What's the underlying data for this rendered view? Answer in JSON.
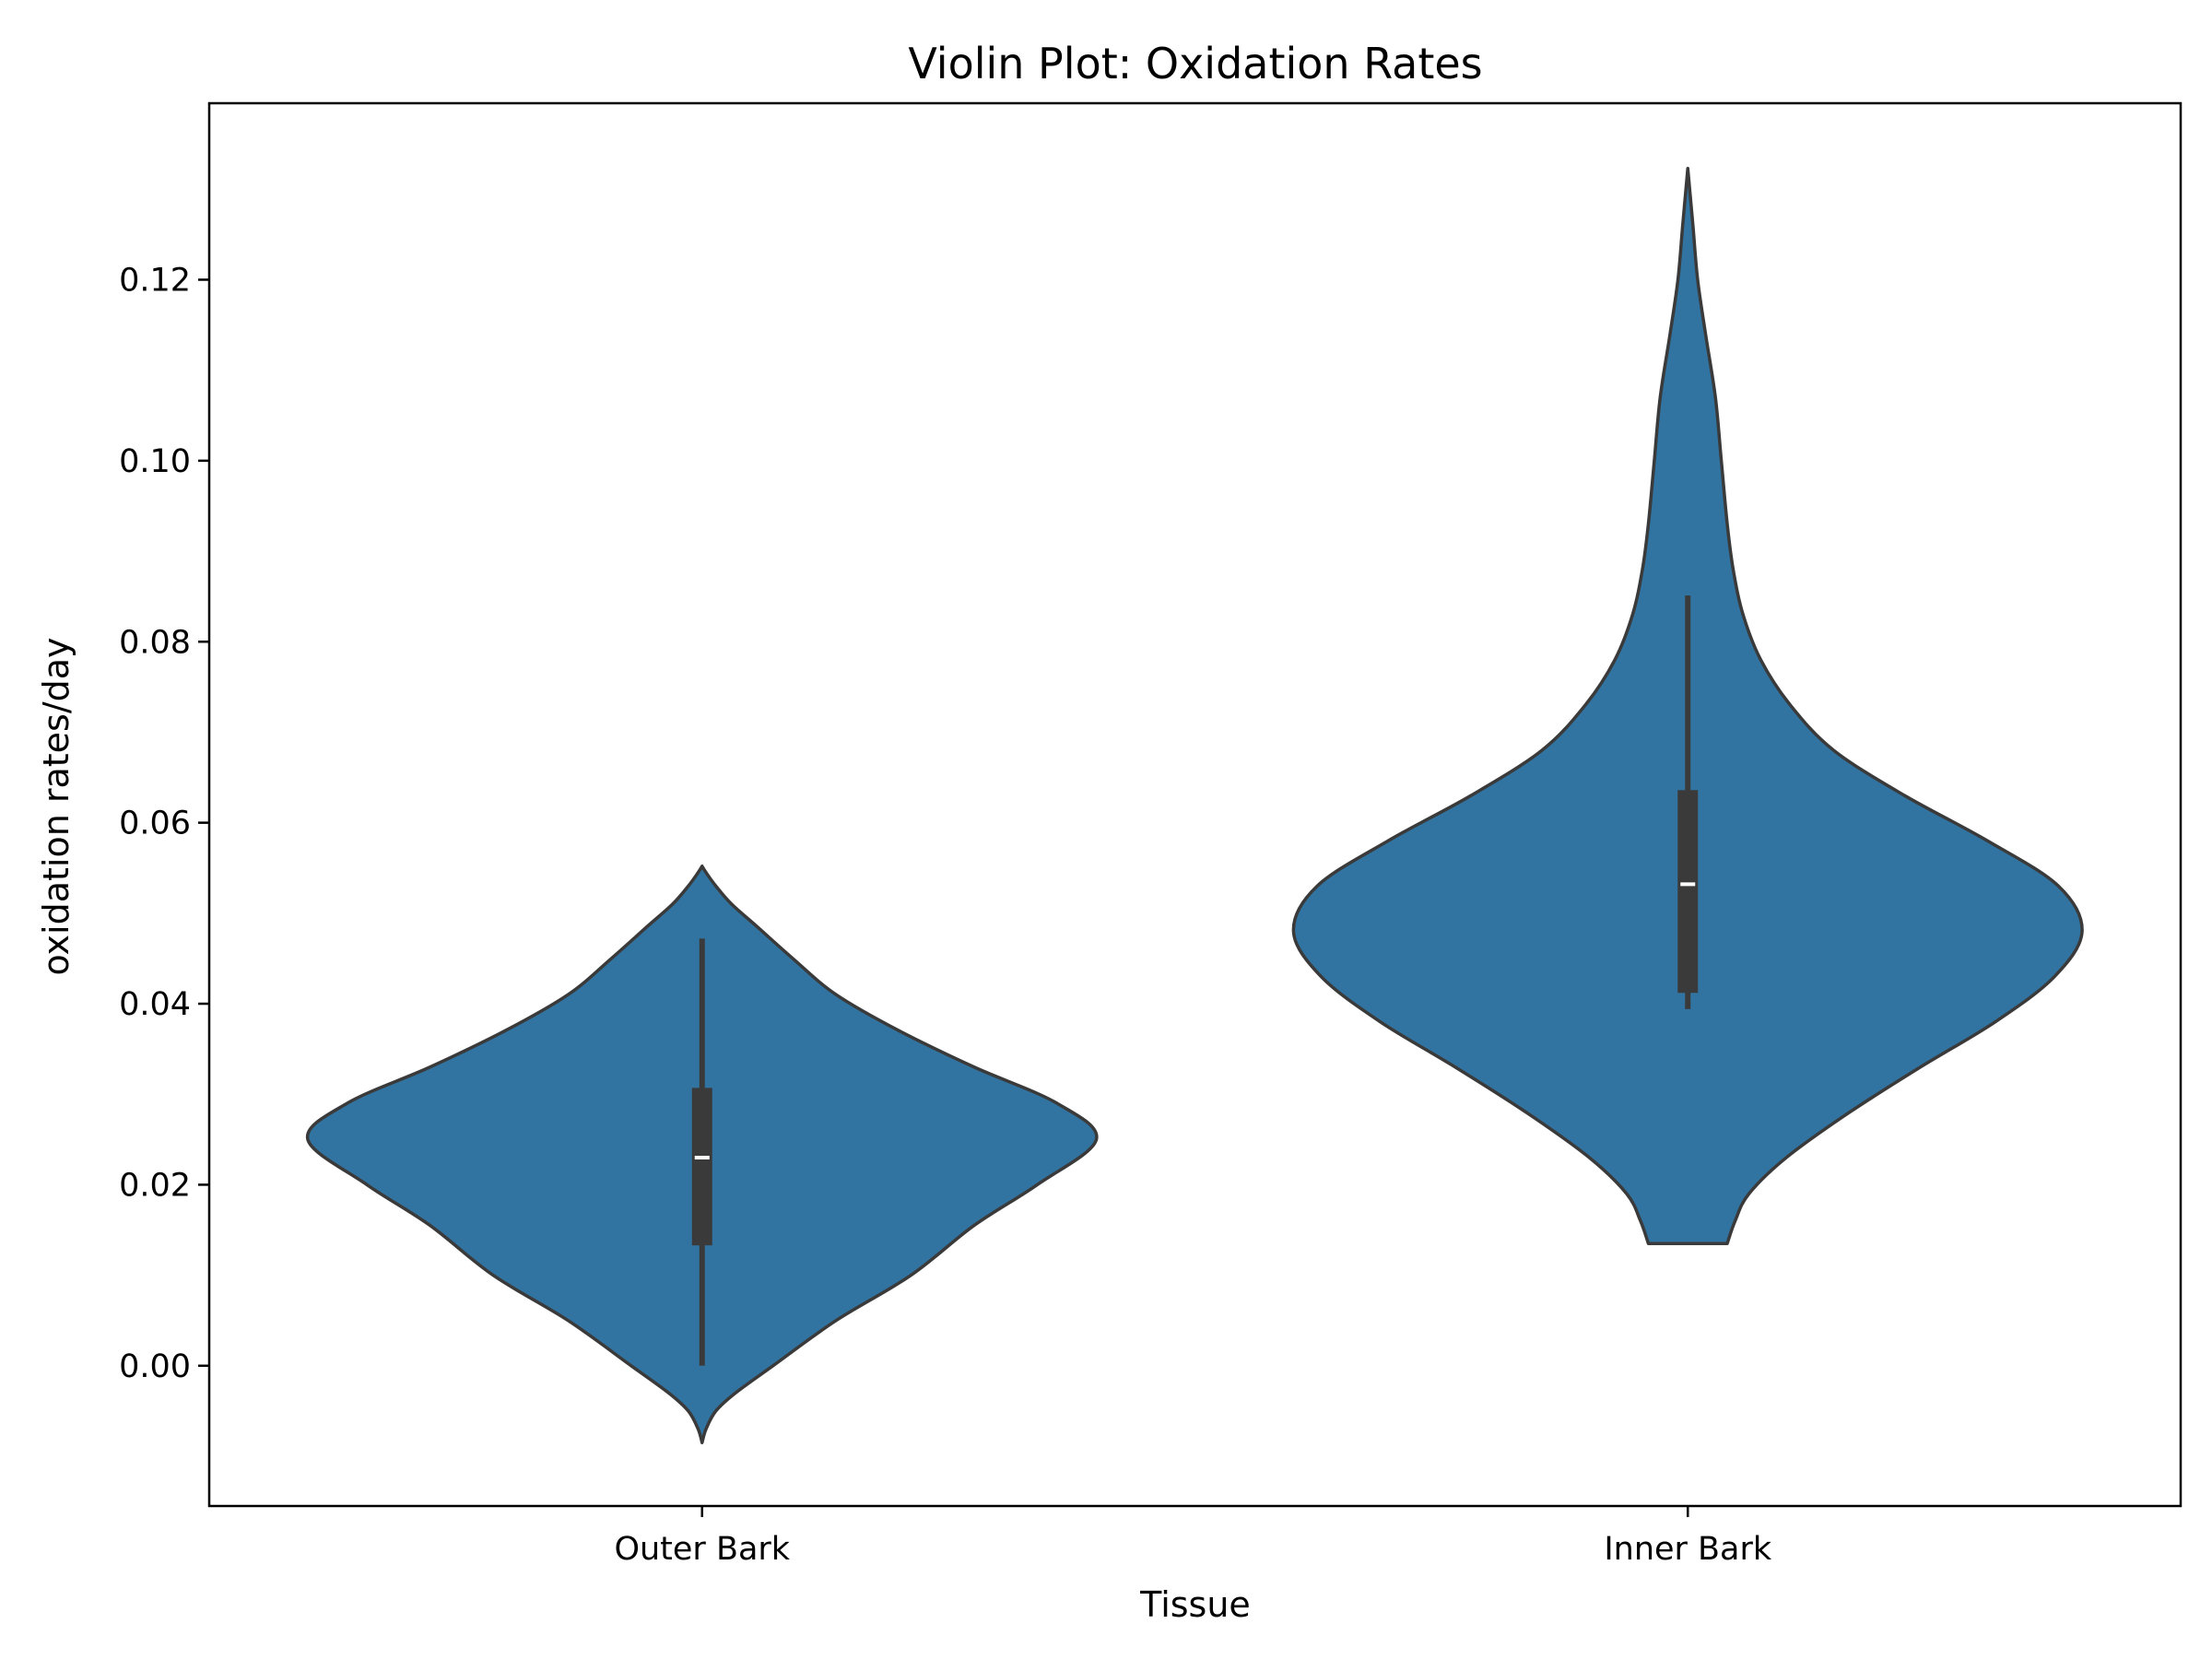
{
  "chart_data": {
    "type": "violin",
    "title": "Violin Plot: Oxidation Rates",
    "xlabel": "Tissue",
    "ylabel": "oxidation rates/day",
    "ylim": [
      -0.0155,
      0.1395
    ],
    "yticks": [
      "0.00",
      "0.02",
      "0.04",
      "0.06",
      "0.08",
      "0.10",
      "0.12"
    ],
    "grid": false,
    "categories": [
      "Outer Bark",
      "Inner Bark"
    ],
    "violins": [
      {
        "category": "Outer Bark",
        "min": -0.0085,
        "max": 0.0552,
        "whisker_low": 0.0,
        "whisker_high": 0.0472,
        "q1": 0.0133,
        "median": 0.023,
        "q3": 0.0307,
        "density_profile": [
          [
            -0.0085,
            0.0
          ],
          [
            -0.007,
            0.01
          ],
          [
            -0.005,
            0.035
          ],
          [
            -0.003,
            0.085
          ],
          [
            0.0,
            0.18
          ],
          [
            0.005,
            0.34
          ],
          [
            0.01,
            0.53
          ],
          [
            0.0155,
            0.69
          ],
          [
            0.02,
            0.85
          ],
          [
            0.025,
            1.0
          ],
          [
            0.029,
            0.9
          ],
          [
            0.033,
            0.69
          ],
          [
            0.037,
            0.5
          ],
          [
            0.041,
            0.34
          ],
          [
            0.045,
            0.23
          ],
          [
            0.0485,
            0.14
          ],
          [
            0.051,
            0.075
          ],
          [
            0.053,
            0.035
          ],
          [
            0.0545,
            0.01
          ],
          [
            0.0552,
            0.0
          ]
        ]
      },
      {
        "category": "Inner Bark",
        "min": 0.0135,
        "max": 0.1323,
        "whisker_low": 0.0394,
        "whisker_high": 0.0851,
        "q1": 0.0412,
        "median": 0.0532,
        "q3": 0.0636,
        "density_profile": [
          [
            0.0135,
            0.1
          ],
          [
            0.016,
            0.12
          ],
          [
            0.019,
            0.155
          ],
          [
            0.023,
            0.25
          ],
          [
            0.028,
            0.41
          ],
          [
            0.033,
            0.59
          ],
          [
            0.038,
            0.78
          ],
          [
            0.043,
            0.93
          ],
          [
            0.048,
            1.0
          ],
          [
            0.053,
            0.94
          ],
          [
            0.058,
            0.76
          ],
          [
            0.063,
            0.55
          ],
          [
            0.068,
            0.37
          ],
          [
            0.073,
            0.26
          ],
          [
            0.078,
            0.185
          ],
          [
            0.083,
            0.14
          ],
          [
            0.088,
            0.115
          ],
          [
            0.093,
            0.1
          ],
          [
            0.1,
            0.085
          ],
          [
            0.107,
            0.07
          ],
          [
            0.114,
            0.045
          ],
          [
            0.12,
            0.025
          ],
          [
            0.126,
            0.013
          ],
          [
            0.1323,
            0.0
          ]
        ]
      }
    ],
    "colors": {
      "violin_fill": "#3274a1",
      "violin_edge": "#3a3a3a",
      "box": "#3a3a3a",
      "median": "#ffffff",
      "axes": "#000000"
    }
  }
}
